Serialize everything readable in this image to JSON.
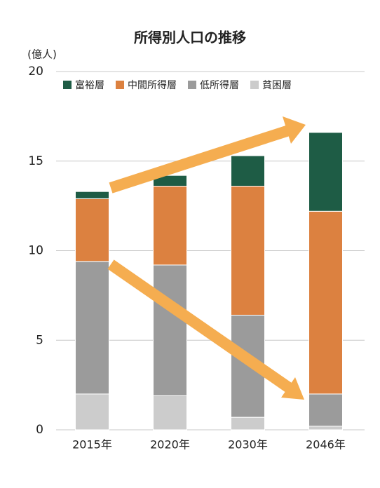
{
  "chart_data": {
    "type": "stacked_bar",
    "title": "所得別人口の推移",
    "y_label": "(億人)",
    "categories": [
      "2015年",
      "2020年",
      "2030年",
      "2046年"
    ],
    "series": [
      {
        "name": "富裕層",
        "color": "#1e5c45",
        "values": [
          0.4,
          0.6,
          1.7,
          4.4
        ]
      },
      {
        "name": "中間所得層",
        "color": "#dc8140",
        "values": [
          3.5,
          4.4,
          7.2,
          10.2
        ]
      },
      {
        "name": "低所得層",
        "color": "#9b9b9b",
        "values": [
          7.4,
          7.3,
          5.7,
          1.8
        ]
      },
      {
        "name": "貧困層",
        "color": "#cccccc",
        "values": [
          2.0,
          1.9,
          0.7,
          0.2
        ]
      }
    ],
    "ylim": [
      0,
      20
    ],
    "yticks": [
      0,
      5,
      10,
      15,
      20
    ],
    "grid": true,
    "legend": "top-left"
  }
}
